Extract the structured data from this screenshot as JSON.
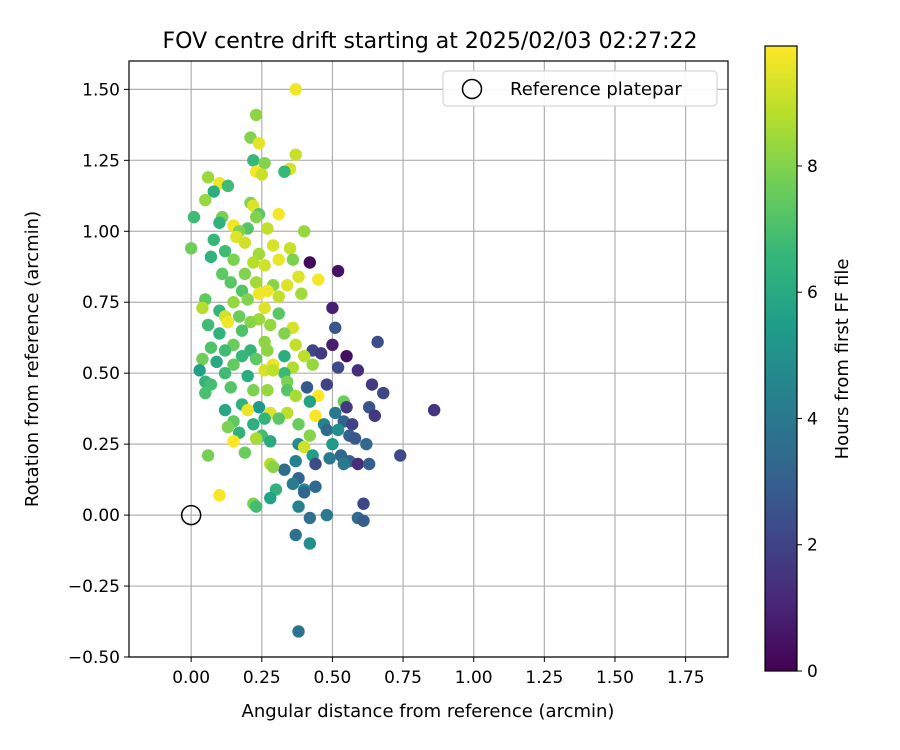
{
  "chart_data": {
    "type": "scatter",
    "title": "FOV centre drift starting at 2025/02/03 02:27:22",
    "xlabel": "Angular distance from reference (arcmin)",
    "ylabel": "Rotation from reference (arcmin)",
    "xlim": [
      -0.22,
      1.9
    ],
    "ylim": [
      -0.5,
      1.6
    ],
    "xticks": [
      "0.00",
      "0.25",
      "0.50",
      "0.75",
      "1.00",
      "1.25",
      "1.50",
      "1.75"
    ],
    "yticks": [
      "−0.50",
      "−0.25",
      "0.00",
      "0.25",
      "0.50",
      "0.75",
      "1.00",
      "1.25",
      "1.50"
    ],
    "grid": true,
    "legend": {
      "position": "top-right",
      "entries": [
        "Reference platepar"
      ]
    },
    "reference_point": {
      "x": 0.0,
      "y": 0.0
    },
    "colorbar": {
      "label": "Hours from first FF file",
      "range": [
        0,
        9.9
      ],
      "ticks": [
        "0",
        "2",
        "4",
        "6",
        "8"
      ],
      "colormap": "viridis"
    },
    "points": [
      [
        0.37,
        1.5,
        9.7
      ],
      [
        0.23,
        1.41,
        8.2
      ],
      [
        0.21,
        1.33,
        8.0
      ],
      [
        0.24,
        1.31,
        9.5
      ],
      [
        0.37,
        1.27,
        9.1
      ],
      [
        0.22,
        1.25,
        6.6
      ],
      [
        0.26,
        1.24,
        8.0
      ],
      [
        0.23,
        1.21,
        9.8
      ],
      [
        0.35,
        1.22,
        9.3
      ],
      [
        0.33,
        1.21,
        6.6
      ],
      [
        0.25,
        1.2,
        9.1
      ],
      [
        0.06,
        1.19,
        8.4
      ],
      [
        0.1,
        1.17,
        9.7
      ],
      [
        0.13,
        1.16,
        6.8
      ],
      [
        0.08,
        1.14,
        6.2
      ],
      [
        0.05,
        1.11,
        8.3
      ],
      [
        0.21,
        1.1,
        8.0
      ],
      [
        0.22,
        1.09,
        9.4
      ],
      [
        0.24,
        1.06,
        7.3
      ],
      [
        0.31,
        1.06,
        9.8
      ],
      [
        0.01,
        1.05,
        6.8
      ],
      [
        0.11,
        1.05,
        7.8
      ],
      [
        0.23,
        1.05,
        8.0
      ],
      [
        0.1,
        1.03,
        6.4
      ],
      [
        0.15,
        1.02,
        9.7
      ],
      [
        0.2,
        1.01,
        7.2
      ],
      [
        0.27,
        1.01,
        9.0
      ],
      [
        0.4,
        1.0,
        8.3
      ],
      [
        0.17,
        1.0,
        8.0
      ],
      [
        0.16,
        0.98,
        9.4
      ],
      [
        0.29,
        0.95,
        9.3
      ],
      [
        0.35,
        0.94,
        9.1
      ],
      [
        0.0,
        0.94,
        7.7
      ],
      [
        0.08,
        0.97,
        6.6
      ],
      [
        0.19,
        0.96,
        9.2
      ],
      [
        0.24,
        0.92,
        8.5
      ],
      [
        0.12,
        0.93,
        6.8
      ],
      [
        0.07,
        0.91,
        6.4
      ],
      [
        0.15,
        0.9,
        7.9
      ],
      [
        0.22,
        0.89,
        8.8
      ],
      [
        0.31,
        0.9,
        9.6
      ],
      [
        0.42,
        0.89,
        0.2
      ],
      [
        0.26,
        0.88,
        9.2
      ],
      [
        0.36,
        0.9,
        7.9
      ],
      [
        0.52,
        0.86,
        0.5
      ],
      [
        0.38,
        0.84,
        9.4
      ],
      [
        0.45,
        0.83,
        9.8
      ],
      [
        0.11,
        0.85,
        7.4
      ],
      [
        0.19,
        0.85,
        8.0
      ],
      [
        0.23,
        0.82,
        8.5
      ],
      [
        0.14,
        0.82,
        7.3
      ],
      [
        0.29,
        0.81,
        8.1
      ],
      [
        0.34,
        0.81,
        9.4
      ],
      [
        0.18,
        0.79,
        7.2
      ],
      [
        0.27,
        0.79,
        9.7
      ],
      [
        0.39,
        0.78,
        8.5
      ],
      [
        0.05,
        0.76,
        7.4
      ],
      [
        0.24,
        0.78,
        9.7
      ],
      [
        0.31,
        0.77,
        9.0
      ],
      [
        0.2,
        0.76,
        8.0
      ],
      [
        0.15,
        0.75,
        8.3
      ],
      [
        0.26,
        0.73,
        9.4
      ],
      [
        0.04,
        0.73,
        8.8
      ],
      [
        0.5,
        0.73,
        0.9
      ],
      [
        0.1,
        0.72,
        6.6
      ],
      [
        0.12,
        0.7,
        9.2
      ],
      [
        0.31,
        0.71,
        7.3
      ],
      [
        0.17,
        0.7,
        7.6
      ],
      [
        0.24,
        0.69,
        8.4
      ],
      [
        0.13,
        0.68,
        9.7
      ],
      [
        0.06,
        0.67,
        6.8
      ],
      [
        0.21,
        0.68,
        8.1
      ],
      [
        0.28,
        0.67,
        8.3
      ],
      [
        0.36,
        0.66,
        9.3
      ],
      [
        0.51,
        0.66,
        2.7
      ],
      [
        0.18,
        0.65,
        7.1
      ],
      [
        0.1,
        0.64,
        6.4
      ],
      [
        0.33,
        0.64,
        8.0
      ],
      [
        0.66,
        0.61,
        2.4
      ],
      [
        0.26,
        0.61,
        8.2
      ],
      [
        0.37,
        0.6,
        9.0
      ],
      [
        0.5,
        0.6,
        0.8
      ],
      [
        0.15,
        0.6,
        7.6
      ],
      [
        0.21,
        0.58,
        6.5
      ],
      [
        0.43,
        0.58,
        2.1
      ],
      [
        0.46,
        0.57,
        1.7
      ],
      [
        0.07,
        0.59,
        7.1
      ],
      [
        0.12,
        0.58,
        6.8
      ],
      [
        0.27,
        0.58,
        8.2
      ],
      [
        0.4,
        0.56,
        8.9
      ],
      [
        0.33,
        0.56,
        6.2
      ],
      [
        0.55,
        0.56,
        0.4
      ],
      [
        0.18,
        0.56,
        6.6
      ],
      [
        0.23,
        0.55,
        7.4
      ],
      [
        0.04,
        0.55,
        7.7
      ],
      [
        0.09,
        0.54,
        6.0
      ],
      [
        0.29,
        0.53,
        9.6
      ],
      [
        0.03,
        0.51,
        5.6
      ],
      [
        0.15,
        0.53,
        7.5
      ],
      [
        0.36,
        0.52,
        8.7
      ],
      [
        0.43,
        0.53,
        8.3
      ],
      [
        0.26,
        0.51,
        9.3
      ],
      [
        0.33,
        0.5,
        6.7
      ],
      [
        0.52,
        0.52,
        2.3
      ],
      [
        0.59,
        0.51,
        1.3
      ],
      [
        0.12,
        0.5,
        6.8
      ],
      [
        0.2,
        0.49,
        6.1
      ],
      [
        0.05,
        0.47,
        6.5
      ],
      [
        0.29,
        0.51,
        8.9
      ],
      [
        0.07,
        0.46,
        6.9
      ],
      [
        0.14,
        0.45,
        7.2
      ],
      [
        0.22,
        0.44,
        7.9
      ],
      [
        0.34,
        0.47,
        7.9
      ],
      [
        0.41,
        0.45,
        2.8
      ],
      [
        0.48,
        0.46,
        2.0
      ],
      [
        0.64,
        0.46,
        1.7
      ],
      [
        0.68,
        0.43,
        2.1
      ],
      [
        0.05,
        0.43,
        7.0
      ],
      [
        0.27,
        0.44,
        8.3
      ],
      [
        0.34,
        0.44,
        7.2
      ],
      [
        0.37,
        0.42,
        8.6
      ],
      [
        0.45,
        0.42,
        9.9
      ],
      [
        0.54,
        0.4,
        7.6
      ],
      [
        0.55,
        0.38,
        1.7
      ],
      [
        0.63,
        0.38,
        2.6
      ],
      [
        0.86,
        0.37,
        1.5
      ],
      [
        0.42,
        0.4,
        5.7
      ],
      [
        0.18,
        0.39,
        6.4
      ],
      [
        0.24,
        0.38,
        5.3
      ],
      [
        0.12,
        0.37,
        5.9
      ],
      [
        0.28,
        0.36,
        9.4
      ],
      [
        0.34,
        0.36,
        8.9
      ],
      [
        0.2,
        0.37,
        9.6
      ],
      [
        0.44,
        0.35,
        9.8
      ],
      [
        0.51,
        0.36,
        4.0
      ],
      [
        0.65,
        0.35,
        1.6
      ],
      [
        0.15,
        0.33,
        7.4
      ],
      [
        0.26,
        0.34,
        6.5
      ],
      [
        0.31,
        0.34,
        7.3
      ],
      [
        0.38,
        0.32,
        7.6
      ],
      [
        0.47,
        0.32,
        4.5
      ],
      [
        0.54,
        0.33,
        3.2
      ],
      [
        0.57,
        0.32,
        2.0
      ],
      [
        0.13,
        0.31,
        7.9
      ],
      [
        0.22,
        0.32,
        6.2
      ],
      [
        0.48,
        0.3,
        3.4
      ],
      [
        0.52,
        0.3,
        4.9
      ],
      [
        0.42,
        0.28,
        8.1
      ],
      [
        0.56,
        0.28,
        3.0
      ],
      [
        0.58,
        0.27,
        2.7
      ],
      [
        0.17,
        0.29,
        6.4
      ],
      [
        0.25,
        0.28,
        6.9
      ],
      [
        0.23,
        0.27,
        8.6
      ],
      [
        0.15,
        0.26,
        9.9
      ],
      [
        0.28,
        0.26,
        6.0
      ],
      [
        0.38,
        0.25,
        4.8
      ],
      [
        0.4,
        0.24,
        9.2
      ],
      [
        0.5,
        0.25,
        5.3
      ],
      [
        0.62,
        0.25,
        3.4
      ],
      [
        0.19,
        0.22,
        7.6
      ],
      [
        0.43,
        0.21,
        5.5
      ],
      [
        0.53,
        0.21,
        3.3
      ],
      [
        0.56,
        0.19,
        3.2
      ],
      [
        0.06,
        0.21,
        7.8
      ],
      [
        0.37,
        0.19,
        4.3
      ],
      [
        0.44,
        0.18,
        2.3
      ],
      [
        0.54,
        0.18,
        4.0
      ],
      [
        0.59,
        0.18,
        1.3
      ],
      [
        0.74,
        0.21,
        2.2
      ],
      [
        0.28,
        0.18,
        8.8
      ],
      [
        0.33,
        0.16,
        3.5
      ],
      [
        0.29,
        0.17,
        8.1
      ],
      [
        0.49,
        0.2,
        4.0
      ],
      [
        0.63,
        0.18,
        3.0
      ],
      [
        0.38,
        0.13,
        3.2
      ],
      [
        0.36,
        0.11,
        4.1
      ],
      [
        0.44,
        0.1,
        3.3
      ],
      [
        0.3,
        0.09,
        6.4
      ],
      [
        0.4,
        0.09,
        4.7
      ],
      [
        0.4,
        0.08,
        3.2
      ],
      [
        0.1,
        0.07,
        9.8
      ],
      [
        0.28,
        0.06,
        5.7
      ],
      [
        0.22,
        0.04,
        7.9
      ],
      [
        0.23,
        0.03,
        6.9
      ],
      [
        0.38,
        0.03,
        4.3
      ],
      [
        0.61,
        0.04,
        2.1
      ],
      [
        0.42,
        -0.01,
        3.7
      ],
      [
        0.48,
        0.0,
        4.0
      ],
      [
        0.59,
        -0.01,
        3.4
      ],
      [
        0.61,
        -0.02,
        2.9
      ],
      [
        0.37,
        -0.07,
        3.7
      ],
      [
        0.42,
        -0.1,
        4.9
      ],
      [
        0.38,
        -0.41,
        3.8
      ]
    ]
  }
}
